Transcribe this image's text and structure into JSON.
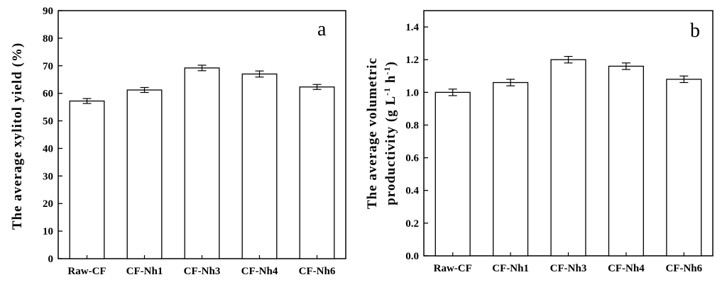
{
  "chart_data": [
    {
      "type": "bar",
      "panel_label": "a",
      "ylabel": "The average xylitol yield (%)",
      "xlabel": "",
      "categories": [
        "Raw-CF",
        "CF-Nh1",
        "CF-Nh3",
        "CF-Nh4",
        "CF-Nh6"
      ],
      "values": [
        57.2,
        61.2,
        69.2,
        67.0,
        62.3
      ],
      "errors": [
        0.9,
        0.9,
        1.0,
        1.1,
        0.9
      ],
      "ylim": [
        0,
        90
      ],
      "yticks": [
        0,
        10,
        20,
        30,
        40,
        50,
        60,
        70,
        80,
        90
      ],
      "ytick_labels": [
        "0",
        "10",
        "20",
        "30",
        "40",
        "50",
        "60",
        "70",
        "80",
        "90"
      ],
      "grid": false,
      "bar_fill": "#ffffff",
      "bar_stroke": "#000000"
    },
    {
      "type": "bar",
      "panel_label": "b",
      "ylabel_lines": [
        "The average volumetric",
        "productivity (g L",
        "-1",
        " h",
        "-1",
        ")"
      ],
      "xlabel": "",
      "categories": [
        "Raw-CF",
        "CF-Nh1",
        "CF-Nh3",
        "CF-Nh4",
        "CF-Nh6"
      ],
      "values": [
        1.0,
        1.06,
        1.2,
        1.16,
        1.08
      ],
      "errors": [
        0.02,
        0.02,
        0.02,
        0.02,
        0.02
      ],
      "ylim": [
        0,
        1.5
      ],
      "yticks": [
        0,
        0.2,
        0.4,
        0.6,
        0.8,
        1.0,
        1.2,
        1.4
      ],
      "ytick_labels": [
        "0.0",
        "0.2",
        "0.4",
        "0.6",
        "0.8",
        "1.0",
        "1.2",
        "1.4"
      ],
      "grid": false,
      "bar_fill": "#ffffff",
      "bar_stroke": "#000000"
    }
  ]
}
